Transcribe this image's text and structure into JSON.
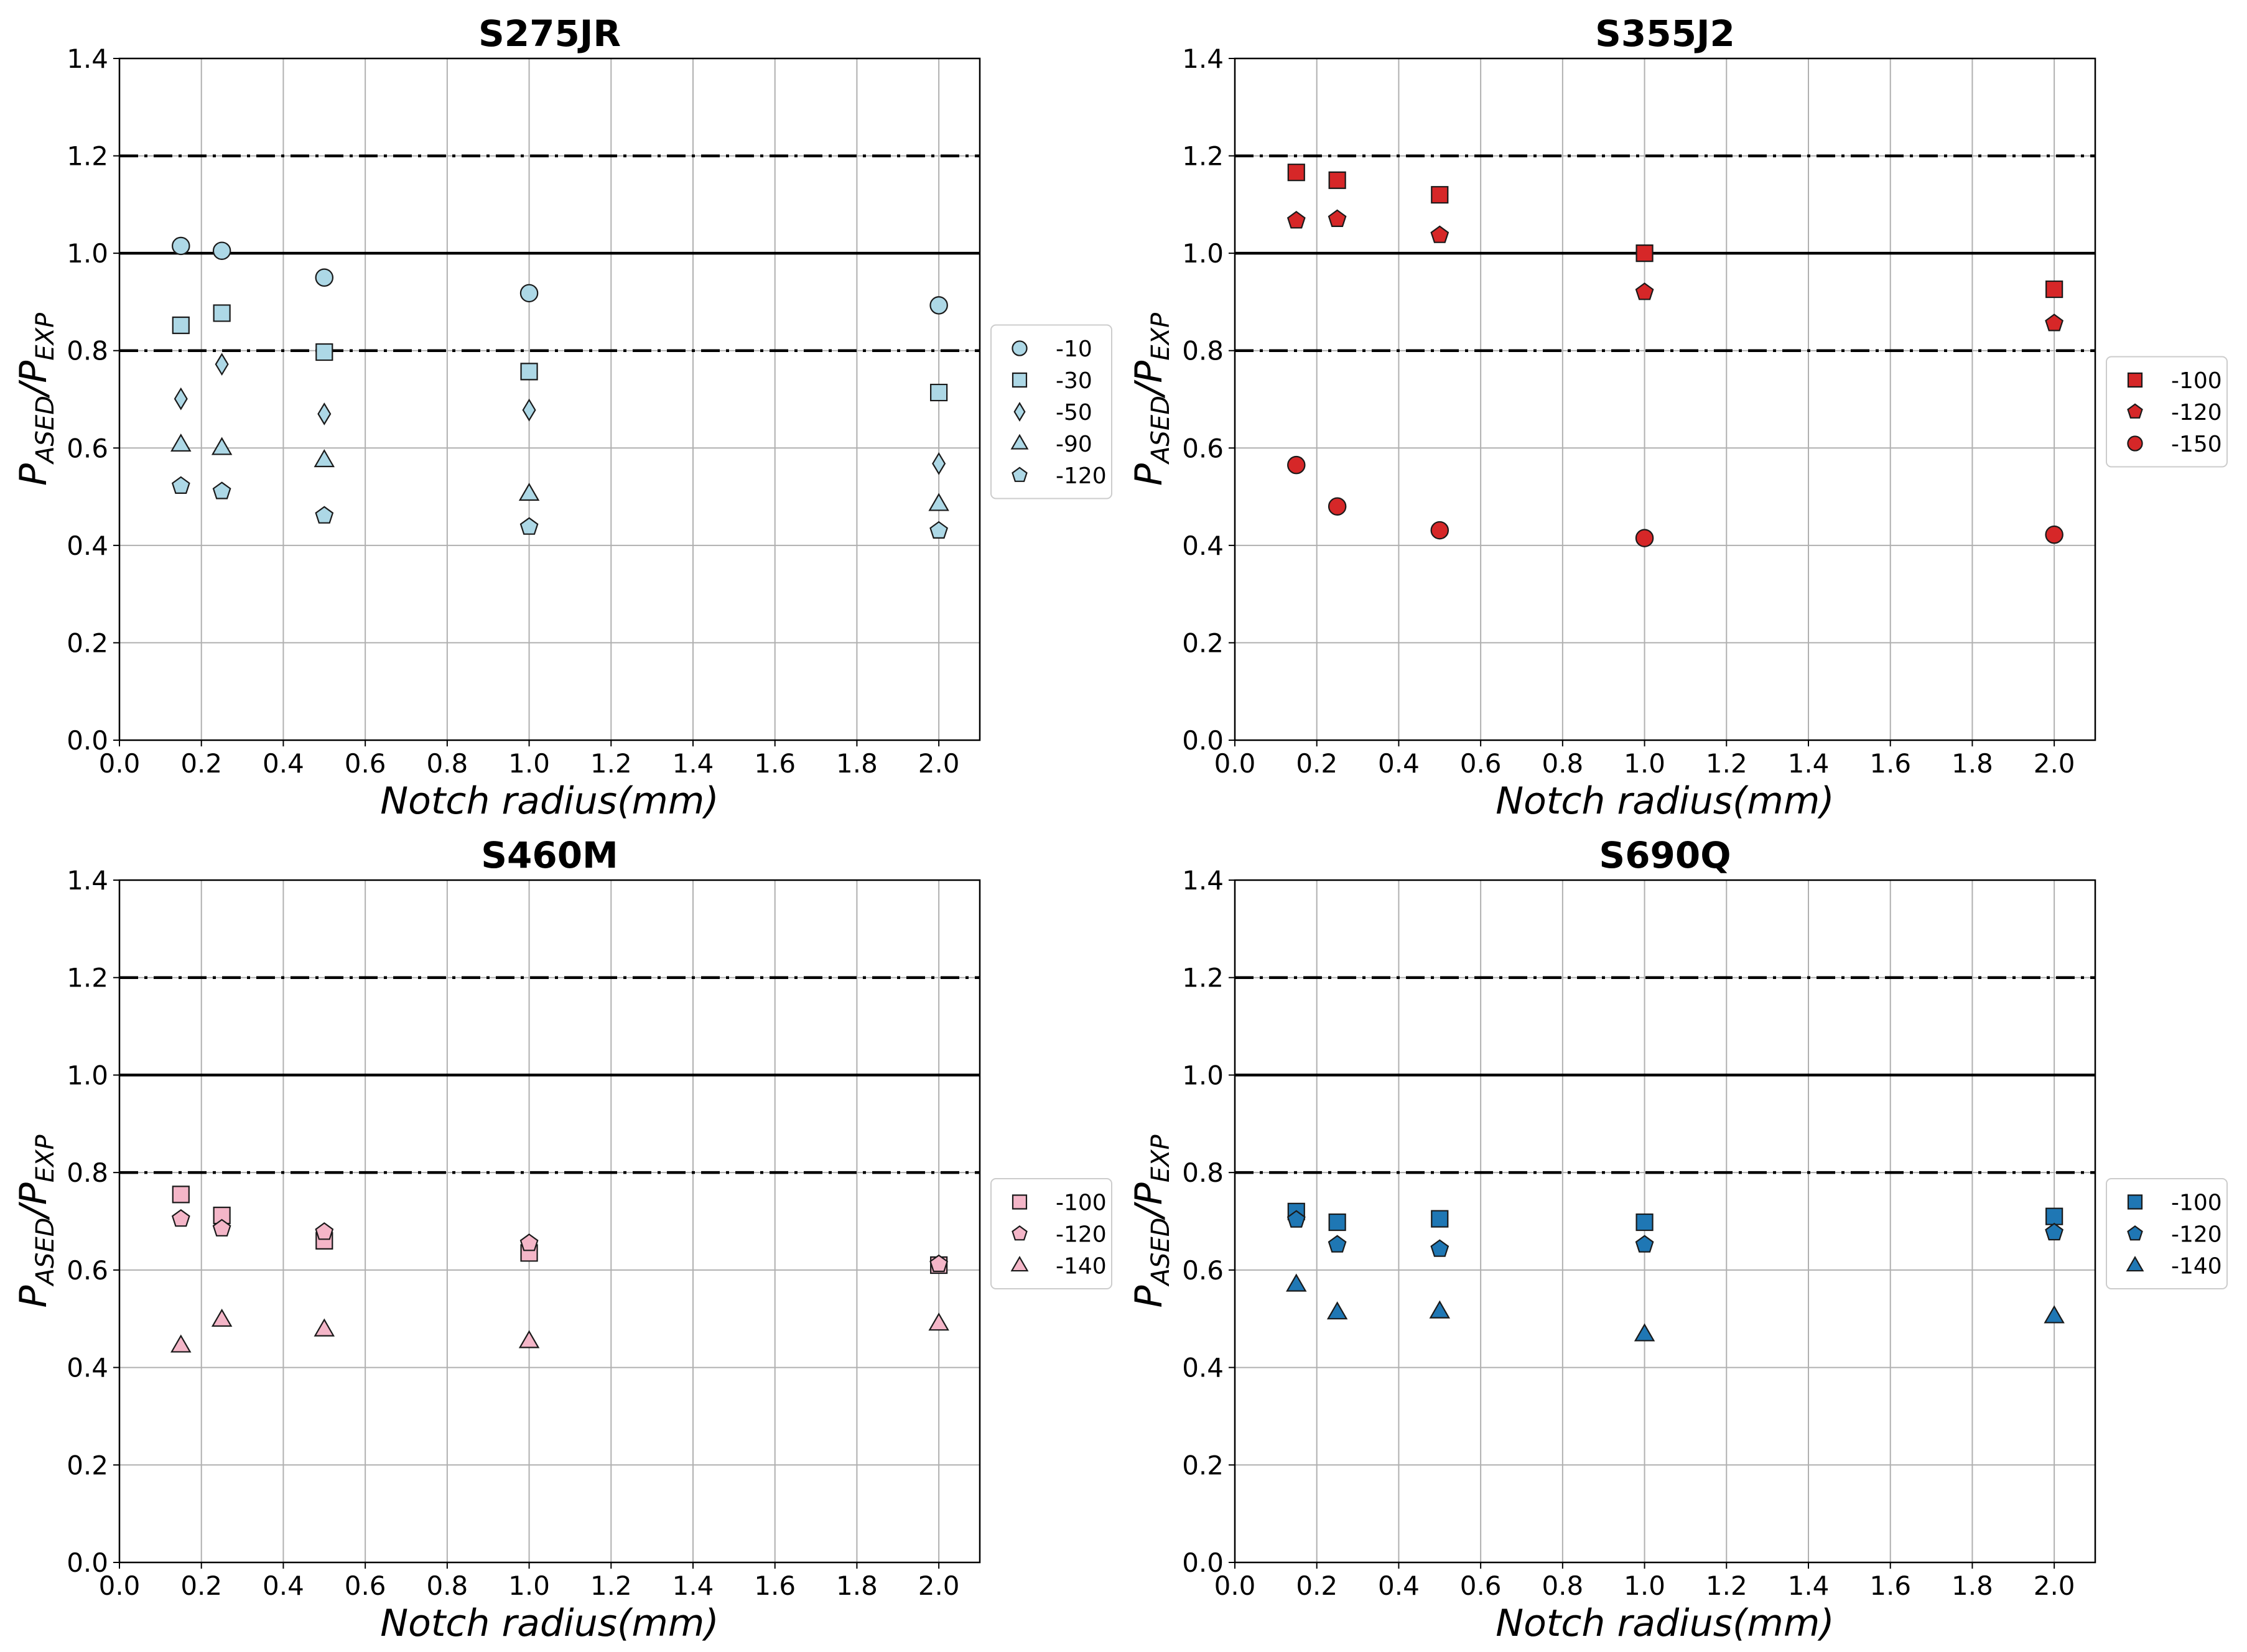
{
  "chart_data": [
    {
      "type": "scatter",
      "title": "S275JR",
      "xlabel": "Notch radius(mm)",
      "ylabel_main": "P",
      "ylabel_sub1": "ASED",
      "ylabel_sep": "/P",
      "ylabel_sub2": "EXP",
      "xlim": [
        0.0,
        2.1
      ],
      "ylim": [
        0.0,
        1.4
      ],
      "xticks": [
        "0.0",
        "0.2",
        "0.4",
        "0.6",
        "0.8",
        "1.0",
        "1.2",
        "1.4",
        "1.6",
        "1.8",
        "2.0"
      ],
      "yticks": [
        "0.0",
        "0.2",
        "0.4",
        "0.6",
        "0.8",
        "1.0",
        "1.2",
        "1.4"
      ],
      "reference_lines": [
        {
          "y": 1.2,
          "style": "dashdot"
        },
        {
          "y": 1.0,
          "style": "solid"
        },
        {
          "y": 0.8,
          "style": "dashdot"
        }
      ],
      "legend_position": "outside-right",
      "series": [
        {
          "name": "-10",
          "marker": "circle",
          "color": "#add8e6",
          "x": [
            0.15,
            0.25,
            0.5,
            1.0,
            2.0
          ],
          "y": [
            1.015,
            1.005,
            0.95,
            0.918,
            0.893
          ]
        },
        {
          "name": "-30",
          "marker": "square",
          "color": "#add8e6",
          "x": [
            0.15,
            0.25,
            0.5,
            1.0,
            2.0
          ],
          "y": [
            0.852,
            0.877,
            0.797,
            0.757,
            0.714
          ]
        },
        {
          "name": "-50",
          "marker": "diamond",
          "color": "#add8e6",
          "x": [
            0.15,
            0.25,
            0.5,
            1.0,
            2.0
          ],
          "y": [
            0.701,
            0.772,
            0.67,
            0.678,
            0.568
          ]
        },
        {
          "name": "-90",
          "marker": "triangle",
          "color": "#add8e6",
          "x": [
            0.15,
            0.25,
            0.5,
            1.0,
            2.0
          ],
          "y": [
            0.607,
            0.6,
            0.575,
            0.506,
            0.485
          ]
        },
        {
          "name": "-120",
          "marker": "pentagon",
          "color": "#add8e6",
          "x": [
            0.15,
            0.25,
            0.5,
            1.0,
            2.0
          ],
          "y": [
            0.522,
            0.511,
            0.461,
            0.438,
            0.43
          ]
        }
      ]
    },
    {
      "type": "scatter",
      "title": "S355J2",
      "xlabel": "Notch radius(mm)",
      "ylabel_main": "P",
      "ylabel_sub1": "ASED",
      "ylabel_sep": "/P",
      "ylabel_sub2": "EXP",
      "xlim": [
        0.0,
        2.1
      ],
      "ylim": [
        0.0,
        1.4
      ],
      "xticks": [
        "0.0",
        "0.2",
        "0.4",
        "0.6",
        "0.8",
        "1.0",
        "1.2",
        "1.4",
        "1.6",
        "1.8",
        "2.0"
      ],
      "yticks": [
        "0.0",
        "0.2",
        "0.4",
        "0.6",
        "0.8",
        "1.0",
        "1.2",
        "1.4"
      ],
      "reference_lines": [
        {
          "y": 1.2,
          "style": "dashdot"
        },
        {
          "y": 1.0,
          "style": "solid"
        },
        {
          "y": 0.8,
          "style": "dashdot"
        }
      ],
      "legend_position": "outside-right",
      "series": [
        {
          "name": "-100",
          "marker": "square",
          "color": "#d62728",
          "x": [
            0.15,
            0.25,
            0.5,
            1.0,
            2.0
          ],
          "y": [
            1.166,
            1.15,
            1.12,
            1.0,
            0.926
          ]
        },
        {
          "name": "-120",
          "marker": "pentagon",
          "color": "#d62728",
          "x": [
            0.15,
            0.25,
            0.5,
            1.0,
            2.0
          ],
          "y": [
            1.067,
            1.07,
            1.037,
            0.92,
            0.856
          ]
        },
        {
          "name": "-150",
          "marker": "circle",
          "color": "#d62728",
          "x": [
            0.15,
            0.25,
            0.5,
            1.0,
            2.0
          ],
          "y": [
            0.565,
            0.48,
            0.431,
            0.415,
            0.422
          ]
        }
      ]
    },
    {
      "type": "scatter",
      "title": "S460M",
      "xlabel": "Notch radius(mm)",
      "ylabel_main": "P",
      "ylabel_sub1": "ASED",
      "ylabel_sep": "/P",
      "ylabel_sub2": "EXP",
      "xlim": [
        0.0,
        2.1
      ],
      "ylim": [
        0.0,
        1.4
      ],
      "xticks": [
        "0.0",
        "0.2",
        "0.4",
        "0.6",
        "0.8",
        "1.0",
        "1.2",
        "1.4",
        "1.6",
        "1.8",
        "2.0"
      ],
      "yticks": [
        "0.0",
        "0.2",
        "0.4",
        "0.6",
        "0.8",
        "1.0",
        "1.2",
        "1.4"
      ],
      "reference_lines": [
        {
          "y": 1.2,
          "style": "dashdot"
        },
        {
          "y": 1.0,
          "style": "solid"
        },
        {
          "y": 0.8,
          "style": "dashdot"
        }
      ],
      "legend_position": "outside-right",
      "series": [
        {
          "name": "-100",
          "marker": "square",
          "color": "#f4b6c8",
          "x": [
            0.15,
            0.25,
            0.5,
            1.0,
            2.0
          ],
          "y": [
            0.755,
            0.712,
            0.66,
            0.635,
            0.61
          ]
        },
        {
          "name": "-120",
          "marker": "pentagon",
          "color": "#f4b6c8",
          "x": [
            0.15,
            0.25,
            0.5,
            1.0,
            2.0
          ],
          "y": [
            0.705,
            0.685,
            0.678,
            0.655,
            0.612
          ]
        },
        {
          "name": "-140",
          "marker": "triangle",
          "color": "#f4b6c8",
          "x": [
            0.15,
            0.25,
            0.5,
            1.0,
            2.0
          ],
          "y": [
            0.445,
            0.498,
            0.478,
            0.454,
            0.49
          ]
        }
      ]
    },
    {
      "type": "scatter",
      "title": "S690Q",
      "xlabel": "Notch radius(mm)",
      "ylabel_main": "P",
      "ylabel_sub1": "ASED",
      "ylabel_sep": "/P",
      "ylabel_sub2": "EXP",
      "xlim": [
        0.0,
        2.1
      ],
      "ylim": [
        0.0,
        1.4
      ],
      "xticks": [
        "0.0",
        "0.2",
        "0.4",
        "0.6",
        "0.8",
        "1.0",
        "1.2",
        "1.4",
        "1.6",
        "1.8",
        "2.0"
      ],
      "yticks": [
        "0.0",
        "0.2",
        "0.4",
        "0.6",
        "0.8",
        "1.0",
        "1.2",
        "1.4"
      ],
      "reference_lines": [
        {
          "y": 1.2,
          "style": "dashdot"
        },
        {
          "y": 1.0,
          "style": "solid"
        },
        {
          "y": 0.8,
          "style": "dashdot"
        }
      ],
      "legend_position": "outside-right",
      "series": [
        {
          "name": "-100",
          "marker": "square",
          "color": "#1f77b4",
          "x": [
            0.15,
            0.25,
            0.5,
            1.0,
            2.0
          ],
          "y": [
            0.72,
            0.698,
            0.705,
            0.698,
            0.71
          ]
        },
        {
          "name": "-120",
          "marker": "pentagon",
          "color": "#1f77b4",
          "x": [
            0.15,
            0.25,
            0.5,
            1.0,
            2.0
          ],
          "y": [
            0.703,
            0.652,
            0.643,
            0.652,
            0.677
          ]
        },
        {
          "name": "-140",
          "marker": "triangle",
          "color": "#1f77b4",
          "x": [
            0.15,
            0.25,
            0.5,
            1.0,
            2.0
          ],
          "y": [
            0.57,
            0.513,
            0.515,
            0.468,
            0.505
          ]
        }
      ]
    }
  ]
}
